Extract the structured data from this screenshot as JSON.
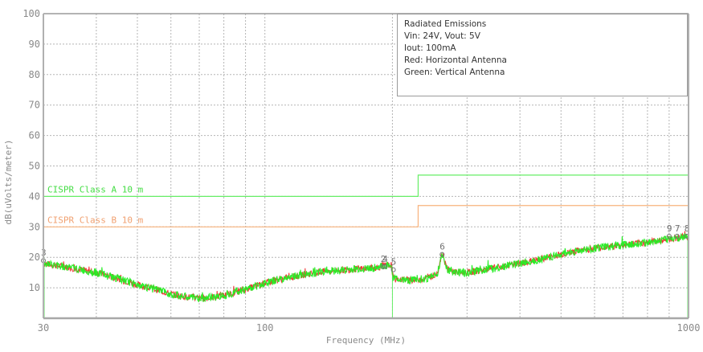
{
  "chart_data": {
    "type": "line",
    "title": "Radiated Emissions",
    "xlabel": "Frequency (MHz)",
    "ylabel": "dB(uVolts/meter)",
    "xscale": "log",
    "xlim": [
      30,
      1000
    ],
    "ylim": [
      0,
      100
    ],
    "x_tick_labels": [
      "30",
      "100",
      "1000"
    ],
    "x_minor_gridlines": [
      40,
      50,
      60,
      70,
      80,
      90,
      200,
      300,
      400,
      500,
      600,
      700,
      800,
      900
    ],
    "y_ticks": [
      10,
      20,
      30,
      40,
      50,
      60,
      70,
      80,
      90,
      100
    ],
    "grid": true,
    "legend_position": "top-right box",
    "annotation_lines": [
      "Radiated Emissions",
      "Vin: 24V, Vout: 5V",
      "Iout: 100mA",
      "Red: Horizontal Antenna",
      "Green: Vertical Antenna"
    ],
    "limits": [
      {
        "name": "CISPR Class A 10 m",
        "color": "#66ee66",
        "segments": [
          {
            "from": 30,
            "to": 230,
            "value": 40
          },
          {
            "from": 230,
            "to": 1000,
            "value": 47
          }
        ]
      },
      {
        "name": "CISPR Class B 10 m",
        "color": "#f8b27c",
        "segments": [
          {
            "from": 30,
            "to": 230,
            "value": 30
          },
          {
            "from": 230,
            "to": 1000,
            "value": 37
          }
        ]
      }
    ],
    "series": [
      {
        "name": "Horizontal Antenna",
        "color": "#ee2222",
        "x": [
          30,
          35,
          40,
          45,
          50,
          55,
          60,
          65,
          70,
          75,
          80,
          90,
          100,
          110,
          120,
          140,
          160,
          180,
          199,
          201,
          220,
          240,
          255,
          262,
          270,
          285,
          300,
          350,
          400,
          450,
          500,
          600,
          700,
          800,
          900,
          1000
        ],
        "y": [
          18,
          16.5,
          15,
          13,
          11,
          9.5,
          8,
          7,
          6.5,
          6.8,
          7.5,
          9.5,
          11.5,
          13,
          14,
          15.5,
          16,
          16.5,
          17.5,
          13,
          12.5,
          13,
          14.5,
          21,
          16,
          15,
          15,
          16.5,
          18,
          19.5,
          21,
          23,
          24,
          25,
          26,
          27
        ]
      },
      {
        "name": "Vertical Antenna",
        "color": "#22ee22",
        "x": [
          30,
          35,
          40,
          45,
          50,
          55,
          60,
          65,
          70,
          75,
          80,
          90,
          100,
          110,
          120,
          140,
          160,
          180,
          199,
          201,
          220,
          240,
          255,
          262,
          270,
          285,
          300,
          350,
          400,
          450,
          500,
          600,
          700,
          800,
          900,
          1000
        ],
        "y": [
          18,
          16.5,
          15,
          13,
          11,
          9.5,
          8,
          7,
          6.5,
          6.8,
          7.5,
          9.5,
          11.5,
          13,
          14,
          15.5,
          16,
          16.5,
          17.5,
          13,
          12.5,
          13,
          14.5,
          21,
          16,
          15,
          15,
          16.5,
          18,
          19.5,
          21,
          23,
          24,
          25,
          26,
          27
        ]
      }
    ],
    "markers": [
      {
        "label": "3",
        "x": 30,
        "y": 20
      },
      {
        "label": "2",
        "x": 190,
        "y": 18
      },
      {
        "label": "4",
        "x": 192,
        "y": 18
      },
      {
        "label": "5",
        "x": 201,
        "y": 17
      },
      {
        "label": "6",
        "x": 262,
        "y": 22
      },
      {
        "label": "9",
        "x": 900,
        "y": 28
      },
      {
        "label": "7",
        "x": 940,
        "y": 28
      },
      {
        "label": "8",
        "x": 990,
        "y": 28
      }
    ]
  }
}
